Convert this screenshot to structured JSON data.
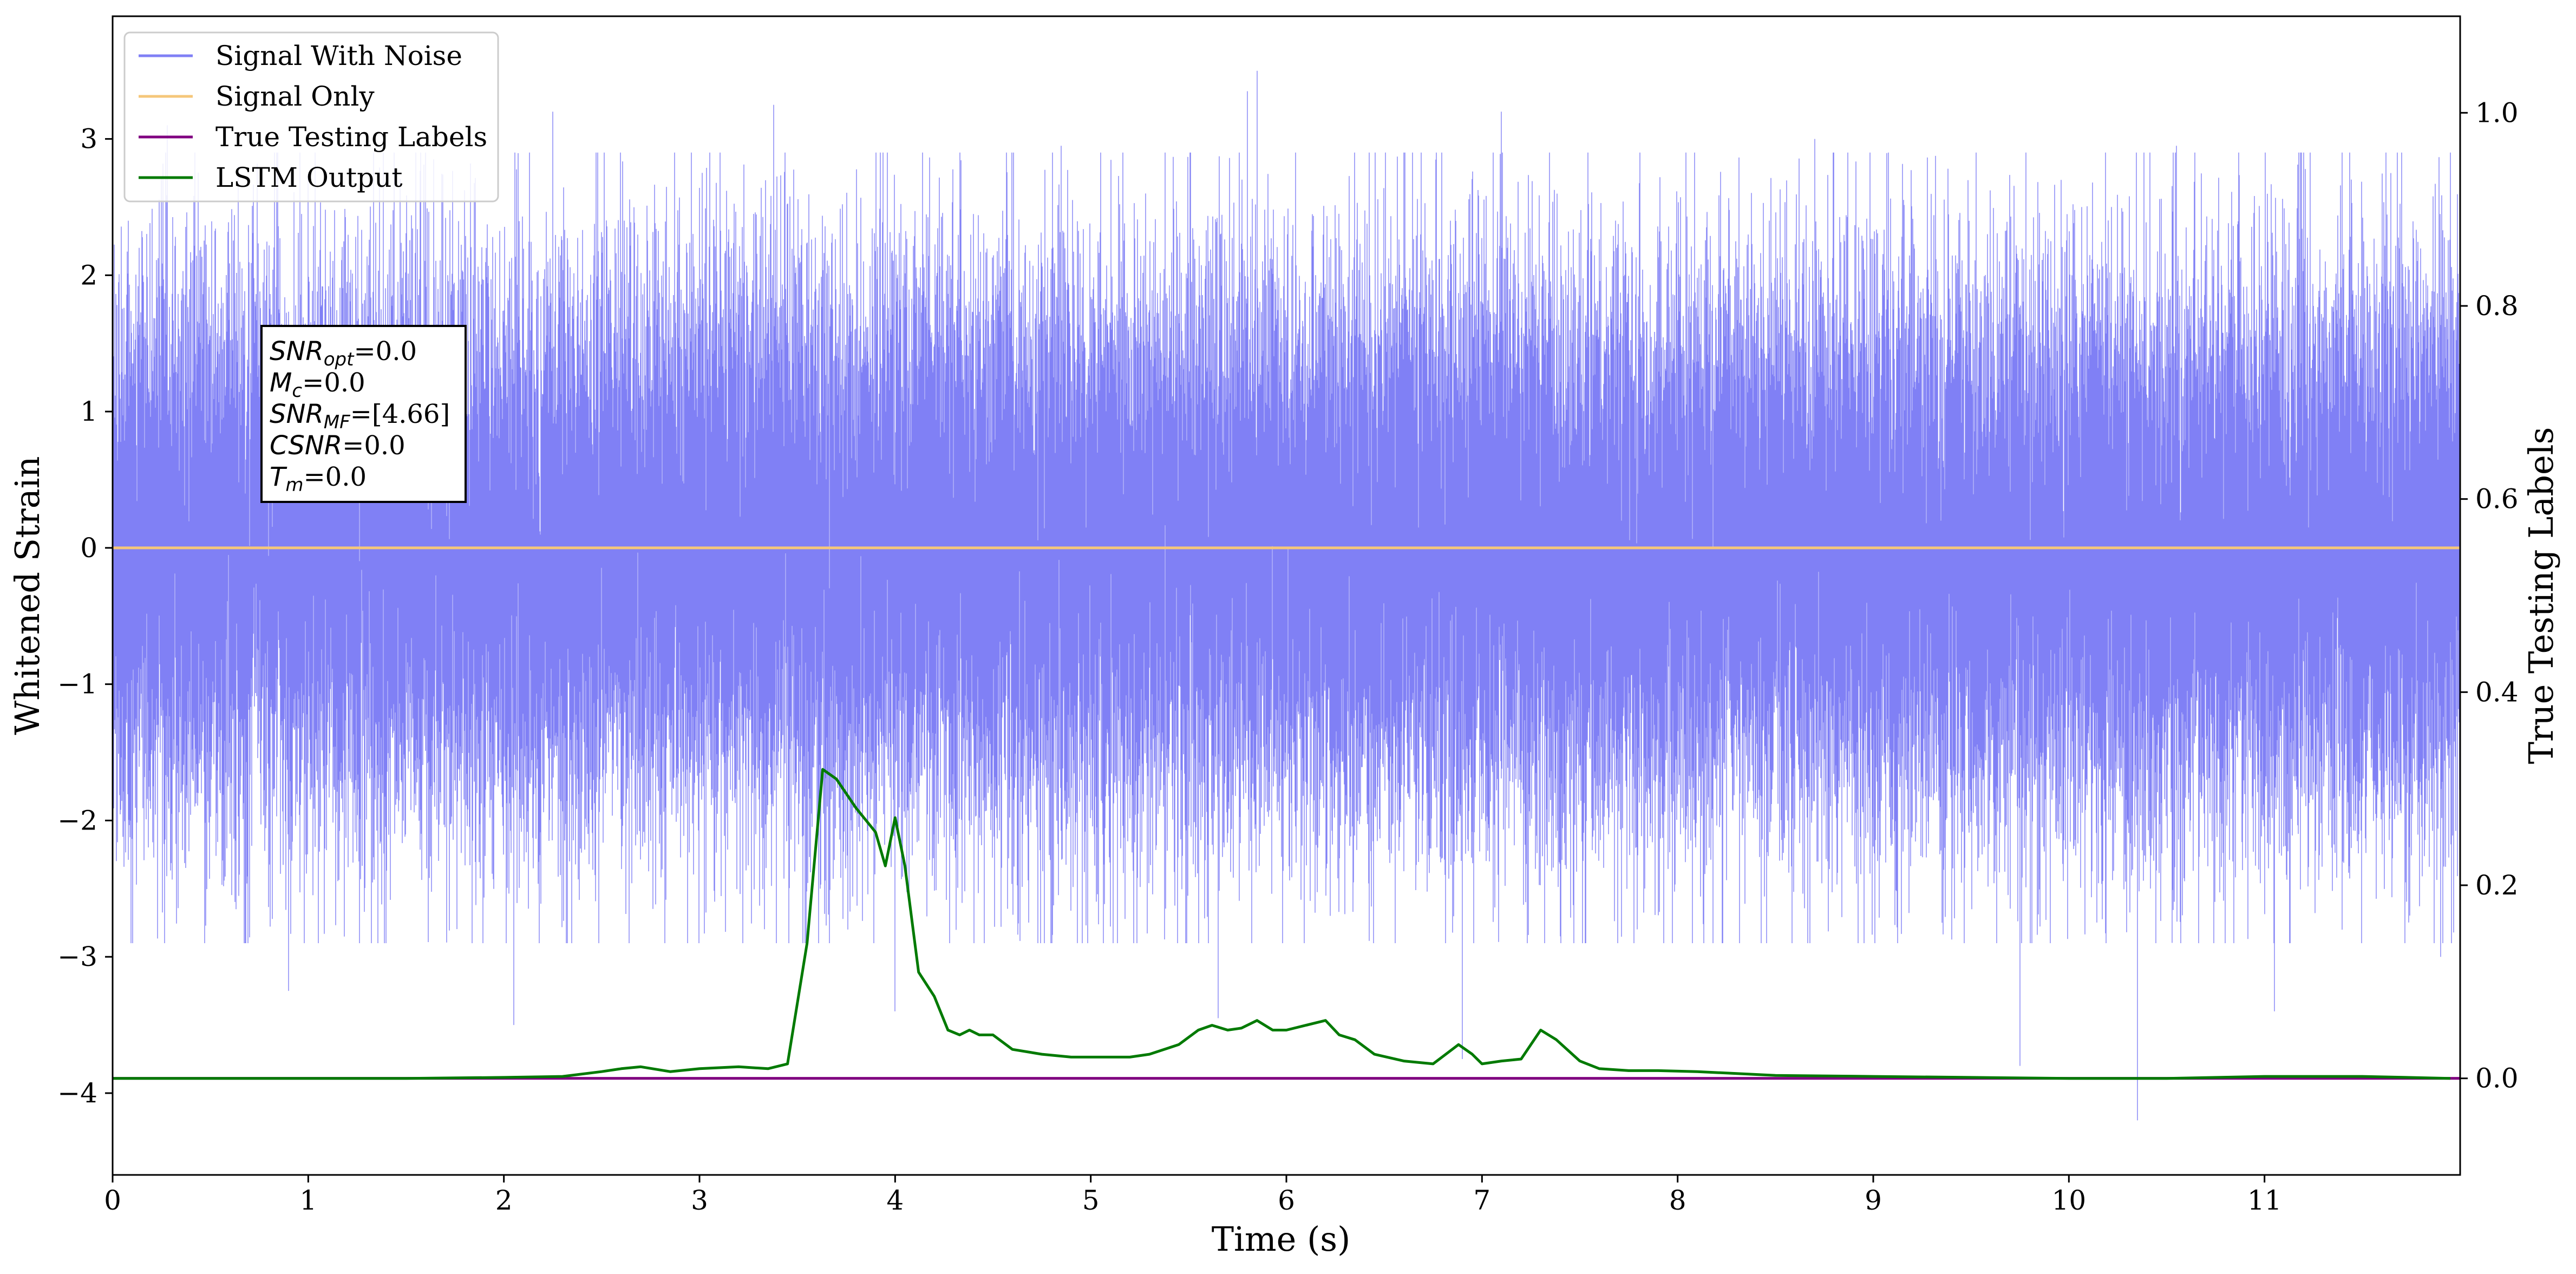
{
  "chart_data": {
    "type": "line",
    "xlabel": "Time (s)",
    "ylabel": "Whitened Strain",
    "ylabel_right": "True Testing Labels",
    "xlim": [
      0,
      12
    ],
    "ylim": [
      -4.6,
      3.9
    ],
    "ylim_right": [
      -0.1,
      1.1
    ],
    "xticks": [
      0,
      1,
      2,
      3,
      4,
      5,
      6,
      7,
      8,
      9,
      10,
      11
    ],
    "yticks": [
      -4,
      -3,
      -2,
      -1,
      0,
      1,
      2,
      3
    ],
    "yticks_right": [
      "0.0",
      "0.2",
      "0.4",
      "0.6",
      "0.8",
      "1.0"
    ],
    "grid": false,
    "legend_placement": "top-left",
    "colors": {
      "signal_with_noise": "#8080f5",
      "signal_only": "#f5c77a",
      "true_labels": "#800080",
      "lstm_output": "#007a00"
    },
    "series": [
      {
        "name": "Signal With Noise",
        "axis": "left",
        "note": "dense noisy waveform oscillating mostly between -2 and 2 with spikes up to ~3.5 and down to ~-4.2",
        "envelope": {
          "upper": 2.0,
          "lower": -2.0
        },
        "spikes": [
          {
            "x": 0.08,
            "y": 2.4
          },
          {
            "x": 0.28,
            "y": 3.1
          },
          {
            "x": 0.42,
            "y": 2.9
          },
          {
            "x": 0.9,
            "y": -3.25
          },
          {
            "x": 1.55,
            "y": 2.9
          },
          {
            "x": 2.05,
            "y": -3.5
          },
          {
            "x": 2.25,
            "y": 3.2
          },
          {
            "x": 3.38,
            "y": 3.25
          },
          {
            "x": 4.0,
            "y": -3.4
          },
          {
            "x": 4.85,
            "y": 2.95
          },
          {
            "x": 5.65,
            "y": -3.45
          },
          {
            "x": 5.8,
            "y": 3.35
          },
          {
            "x": 5.85,
            "y": 3.5
          },
          {
            "x": 6.35,
            "y": 2.9
          },
          {
            "x": 6.9,
            "y": -3.75
          },
          {
            "x": 7.1,
            "y": 3.2
          },
          {
            "x": 7.4,
            "y": -2.85
          },
          {
            "x": 8.7,
            "y": 3.0
          },
          {
            "x": 9.75,
            "y": -3.8
          },
          {
            "x": 10.35,
            "y": -4.2
          },
          {
            "x": 10.55,
            "y": 2.95
          },
          {
            "x": 11.05,
            "y": -3.4
          },
          {
            "x": 11.9,
            "y": -3.0
          }
        ]
      },
      {
        "name": "Signal Only",
        "axis": "left",
        "x": [
          0,
          12
        ],
        "y": [
          0.0,
          0.0
        ]
      },
      {
        "name": "True Testing Labels",
        "axis": "right",
        "x": [
          0,
          12
        ],
        "y": [
          0.0,
          0.0
        ]
      },
      {
        "name": "LSTM Output",
        "axis": "right",
        "x": [
          0,
          0.5,
          1.0,
          1.5,
          2.0,
          2.3,
          2.5,
          2.6,
          2.7,
          2.85,
          3.0,
          3.2,
          3.35,
          3.45,
          3.55,
          3.63,
          3.7,
          3.8,
          3.9,
          3.95,
          4.0,
          4.05,
          4.12,
          4.2,
          4.27,
          4.33,
          4.38,
          4.43,
          4.5,
          4.6,
          4.75,
          4.9,
          5.05,
          5.2,
          5.3,
          5.45,
          5.55,
          5.62,
          5.7,
          5.77,
          5.85,
          5.93,
          6.0,
          6.1,
          6.2,
          6.27,
          6.35,
          6.45,
          6.6,
          6.75,
          6.88,
          6.95,
          7.0,
          7.1,
          7.2,
          7.3,
          7.38,
          7.5,
          7.6,
          7.75,
          7.9,
          8.1,
          8.5,
          9.0,
          9.5,
          10.0,
          10.5,
          11.0,
          11.5,
          11.95
        ],
        "y": [
          0.0,
          0.0,
          0.0,
          0.0,
          0.001,
          0.002,
          0.007,
          0.01,
          0.012,
          0.007,
          0.01,
          0.012,
          0.01,
          0.015,
          0.14,
          0.32,
          0.31,
          0.28,
          0.255,
          0.22,
          0.27,
          0.22,
          0.11,
          0.085,
          0.05,
          0.045,
          0.05,
          0.045,
          0.045,
          0.03,
          0.025,
          0.022,
          0.022,
          0.022,
          0.025,
          0.035,
          0.05,
          0.055,
          0.05,
          0.052,
          0.06,
          0.05,
          0.05,
          0.055,
          0.06,
          0.045,
          0.04,
          0.025,
          0.018,
          0.015,
          0.035,
          0.025,
          0.015,
          0.018,
          0.02,
          0.05,
          0.04,
          0.018,
          0.01,
          0.008,
          0.008,
          0.007,
          0.003,
          0.002,
          0.001,
          0.0,
          0.0,
          0.002,
          0.002,
          0.0
        ]
      }
    ],
    "annotation": {
      "lines": [
        {
          "sym": "SNR",
          "sub": "opt",
          "val": "=0.0"
        },
        {
          "sym": "M",
          "sub": "c",
          "val": "=0.0"
        },
        {
          "sym": "SNR",
          "sub": "MF",
          "val": "=[4.66]"
        },
        {
          "sym": "CSNR",
          "sub": "",
          "val": "=0.0"
        },
        {
          "sym": "T",
          "sub": "m",
          "val": "=0.0"
        }
      ]
    }
  }
}
